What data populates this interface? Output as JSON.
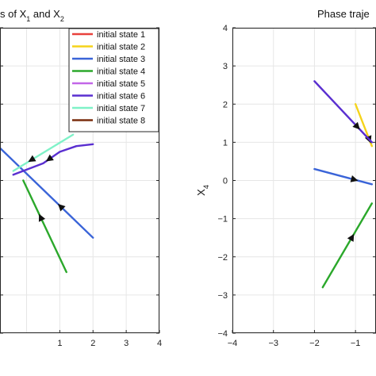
{
  "chart_data": [
    {
      "type": "line",
      "title_pre": "s of X",
      "title_sub1": "1",
      "title_mid": " and X",
      "title_sub2": "2",
      "xlim": [
        -0.8,
        4
      ],
      "ylim": [
        -4,
        4
      ],
      "xticks": [
        1,
        2,
        3,
        4
      ],
      "grid": true,
      "legend_position": "top-right",
      "legend": [
        {
          "name": "initial state 1",
          "color": "#e8413c"
        },
        {
          "name": "initial state 2",
          "color": "#f5d31a"
        },
        {
          "name": "initial state 3",
          "color": "#3a64d8"
        },
        {
          "name": "initial state 4",
          "color": "#2ba82b"
        },
        {
          "name": "initial state 5",
          "color": "#c266e8"
        },
        {
          "name": "initial state 6",
          "color": "#5a2fd0"
        },
        {
          "name": "initial state 7",
          "color": "#7ff2c8"
        },
        {
          "name": "initial state 8",
          "color": "#7a2e0e"
        }
      ],
      "series": [
        {
          "color": "#2ba82b",
          "points": [
            [
              1.2,
              -2.4
            ],
            [
              -0.1,
              0.0
            ]
          ],
          "arrow_at": 0.6
        },
        {
          "color": "#3a64d8",
          "points": [
            [
              2.0,
              -1.5
            ],
            [
              -0.8,
              0.85
            ]
          ],
          "arrow_at": 0.35
        },
        {
          "color": "#5a2fd0",
          "points": [
            [
              2.0,
              0.95
            ],
            [
              1.5,
              0.9
            ],
            [
              1.0,
              0.75
            ],
            [
              0.5,
              0.45
            ],
            [
              -0.4,
              0.15
            ]
          ],
          "arrow_at": 0.55
        },
        {
          "color": "#7ff2c8",
          "points": [
            [
              1.4,
              1.2
            ],
            [
              -0.4,
              0.25
            ]
          ],
          "arrow_at": 0.7
        }
      ]
    },
    {
      "type": "line",
      "title": "Phase traje",
      "ylabel_pre": "X",
      "ylabel_sub": "4",
      "xlim": [
        -4,
        -0.5
      ],
      "ylim": [
        -4,
        4
      ],
      "xticks": [
        -4,
        -3,
        -2,
        -1
      ],
      "yticks": [
        -4,
        -3,
        -2,
        -1,
        0,
        1,
        2,
        3,
        4
      ],
      "grid": true,
      "series": [
        {
          "color": "#f5d31a",
          "points": [
            [
              -1.0,
              2.0
            ],
            [
              -0.6,
              0.9
            ]
          ],
          "arrow_at": 0.85
        },
        {
          "color": "#5a2fd0",
          "points": [
            [
              -2.0,
              2.6
            ],
            [
              -0.6,
              1.0
            ]
          ],
          "arrow_at": 0.75
        },
        {
          "color": "#3a64d8",
          "points": [
            [
              -2.0,
              0.3
            ],
            [
              -0.6,
              -0.1
            ]
          ],
          "arrow_at": 0.7
        },
        {
          "color": "#2ba82b",
          "points": [
            [
              -1.8,
              -2.8
            ],
            [
              -0.6,
              -0.6
            ]
          ],
          "arrow_at": 0.6
        }
      ]
    }
  ]
}
